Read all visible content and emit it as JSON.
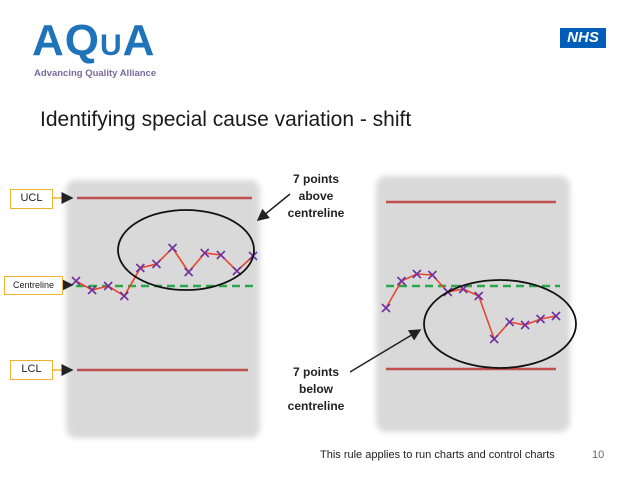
{
  "header": {
    "logo_main": "AQ",
    "logo_small": "U",
    "logo_end": "A",
    "logo_tagline": "Advancing Quality Alliance",
    "nhs_badge": "NHS"
  },
  "slide": {
    "title": "Identifying special cause variation - shift",
    "footer": "This rule applies to run charts and control charts",
    "page_number": "10"
  },
  "labels": {
    "ucl": "UCL",
    "centreline": "Centreline",
    "lcl": "LCL"
  },
  "annotations": {
    "above": [
      "7 points",
      "above",
      "centreline"
    ],
    "below": [
      "7 points",
      "below",
      "centreline"
    ]
  },
  "colors": {
    "limit_line": "#c0504d",
    "centre_line": "#2aa84a",
    "data_line": "#e8462c",
    "marker": "#7030a0",
    "panel": "#d9d9d9",
    "callout": "#f2b233"
  },
  "chart_data": [
    {
      "type": "line",
      "name": "left-chart",
      "x": [
        1,
        2,
        3,
        4,
        5,
        6,
        7,
        8,
        9,
        10,
        11,
        12
      ],
      "values": [
        2.3,
        1.4,
        1.8,
        0.8,
        3.6,
        4.0,
        5.6,
        3.2,
        5.1,
        4.9,
        3.3,
        4.8
      ],
      "ucl": 9.4,
      "centreline": 1.8,
      "lcl": -7.8,
      "ylim": [
        -8.5,
        10.5
      ]
    },
    {
      "type": "line",
      "name": "right-chart",
      "x": [
        1,
        2,
        3,
        4,
        5,
        6,
        7,
        8,
        9,
        10,
        11,
        12
      ],
      "values": [
        -0.4,
        2.3,
        3.0,
        2.9,
        1.2,
        1.5,
        0.8,
        -3.5,
        -1.8,
        -2.1,
        -1.5,
        -1.2
      ],
      "ucl": 8.8,
      "centreline": 1.8,
      "lcl": -7.6,
      "ylim": [
        -8.5,
        10.5
      ]
    }
  ]
}
